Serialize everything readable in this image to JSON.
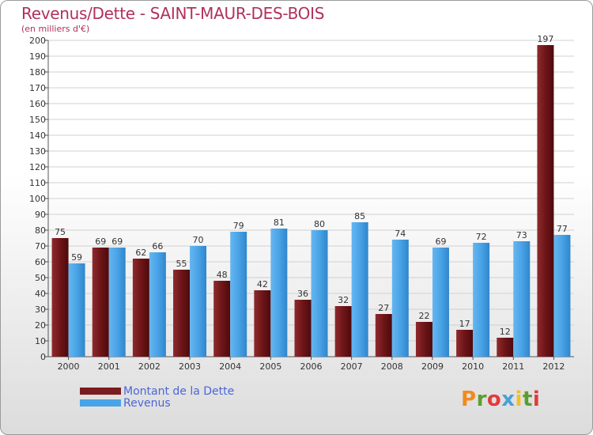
{
  "title": "Revenus/Dette - SAINT-MAUR-DES-BOIS",
  "subtitle": "(en milliers d'€)",
  "brand": {
    "text": "Proxiti",
    "colors": [
      "#f18a1e",
      "#5a9e2f",
      "#e23b3b",
      "#4aa0d8",
      "#f3c01f",
      "#5a9e2f",
      "#e23b3b"
    ]
  },
  "chart_data": {
    "type": "bar",
    "categories": [
      "2000",
      "2001",
      "2002",
      "2003",
      "2004",
      "2005",
      "2006",
      "2007",
      "2008",
      "2009",
      "2010",
      "2011",
      "2012"
    ],
    "series": [
      {
        "name": "Montant de la Dette",
        "color": "#7a1c1f",
        "values": [
          75,
          69,
          62,
          55,
          48,
          42,
          36,
          32,
          27,
          22,
          17,
          12,
          197
        ]
      },
      {
        "name": "Revenus",
        "color": "#4aa3e6",
        "values": [
          59,
          69,
          66,
          70,
          79,
          81,
          80,
          85,
          74,
          69,
          72,
          73,
          77
        ]
      }
    ],
    "ylim": [
      0,
      200
    ],
    "yticks": [
      "0",
      "10",
      "20",
      "30",
      "40",
      "50",
      "60",
      "70",
      "80",
      "90",
      "100",
      "110",
      "120",
      "130",
      "140",
      "150",
      "160",
      "170",
      "180",
      "190",
      "200"
    ],
    "grid": true,
    "legend": "bottom-left"
  }
}
